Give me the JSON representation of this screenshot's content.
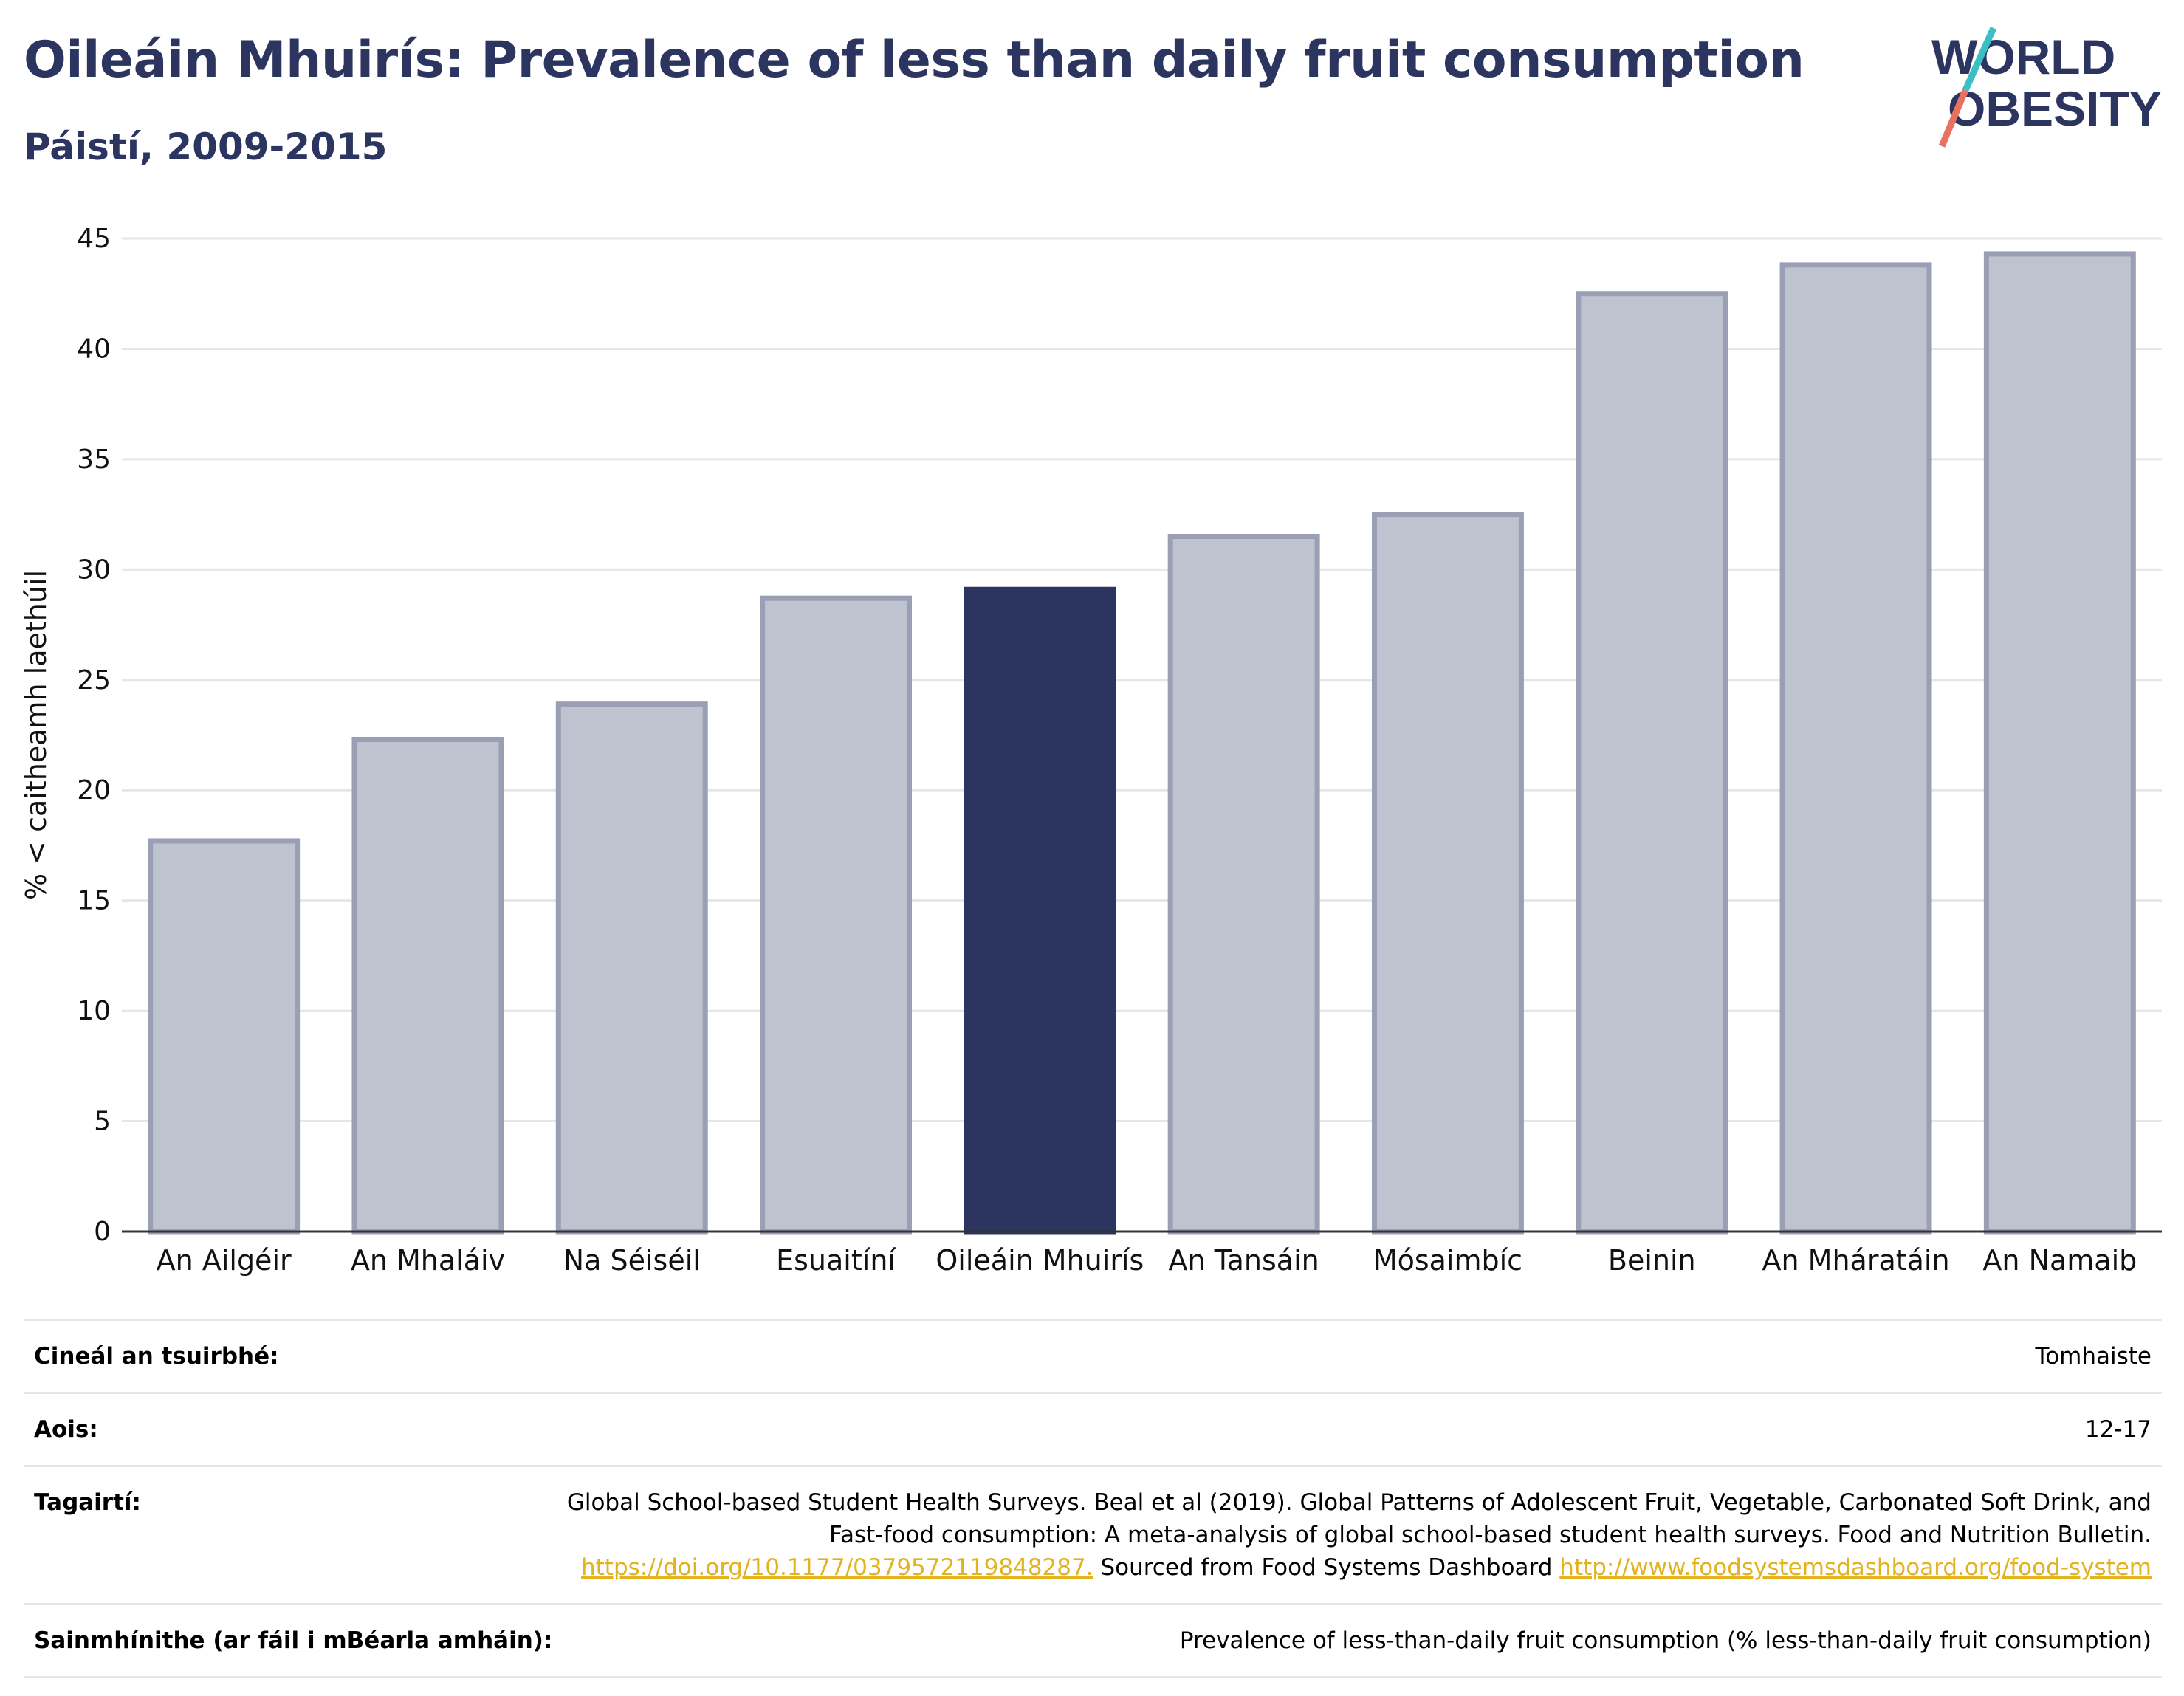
{
  "header": {
    "title": "Oileáin Mhuirís: Prevalence of less than daily fruit consumption",
    "subtitle": "Páistí, 2009-2015",
    "logo_line1": "WORLD",
    "logo_line2": "OBESITY"
  },
  "chart_data": {
    "type": "bar",
    "categories": [
      "An Ailgéir",
      "An Mhaláiv",
      "Na Séiséil",
      "Esuaitíní",
      "Oileáin Mhuirís",
      "An Tansáin",
      "Mósaimbíc",
      "Beinin",
      "An Mháratáin",
      "An Namaib"
    ],
    "values": [
      17.7,
      22.3,
      23.9,
      28.7,
      29.1,
      31.5,
      32.5,
      42.5,
      43.8,
      44.3
    ],
    "highlight": "Oileáin Mhuirís",
    "xlabel": "",
    "ylabel": "% < caitheamh laethúil",
    "ylim": [
      0,
      45
    ],
    "yticks": [
      0,
      5,
      10,
      15,
      20,
      25,
      30,
      35,
      40,
      45
    ],
    "grid": true,
    "colors": {
      "highlight": "#2b3560",
      "bar": "#bfc2cf",
      "bar_edge": "#9a9fb5",
      "grid": "#e6e6e6",
      "axis": "#333333"
    }
  },
  "meta": {
    "rows": [
      {
        "label": "Cineál an tsuirbhé:",
        "value": "Tomhaiste"
      },
      {
        "label": "Aois:",
        "value": "12-17"
      },
      {
        "label": "Tagairtí:",
        "value_text1": "Global School-based Student Health Surveys. Beal et al (2019). Global Patterns of Adolescent Fruit, Vegetable, Carbonated Soft Drink, and Fast-food consumption: A meta-analysis of global school-based student health surveys. Food and Nutrition Bulletin.",
        "link1": "https://doi.org/10.1177/0379572119848287.",
        "value_text2": "Sourced from Food Systems Dashboard",
        "link2": "http://www.foodsystemsdashboard.org/food-system"
      },
      {
        "label": "Sainmhínithe (ar fáil i mBéarla amháin):",
        "value": "Prevalence of less-than-daily fruit consumption (% less-than-daily fruit consumption)"
      }
    ]
  }
}
